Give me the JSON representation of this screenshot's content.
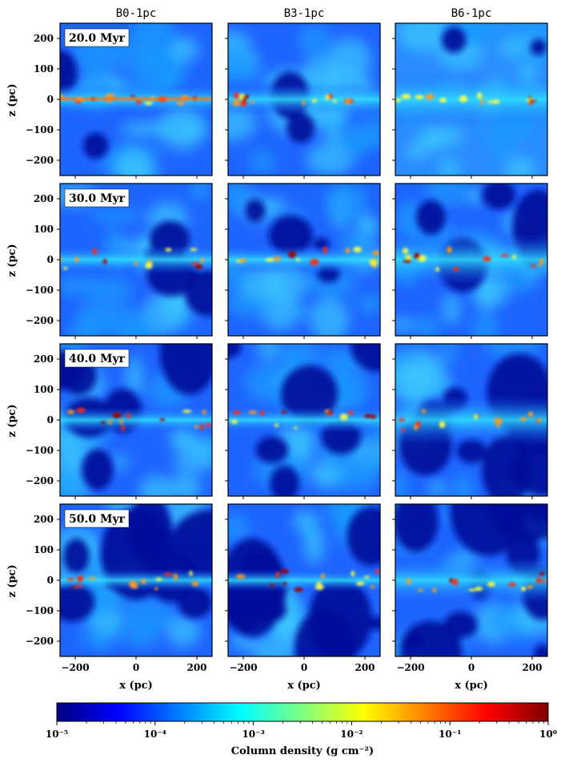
{
  "figure": {
    "columns": [
      "B0-1pc",
      "B3-1pc",
      "B6-1pc"
    ],
    "rows": [
      {
        "time_label": "20.0 Myr"
      },
      {
        "time_label": "30.0 Myr"
      },
      {
        "time_label": "40.0 Myr"
      },
      {
        "time_label": "50.0 Myr"
      }
    ],
    "x_axis": {
      "label": "x (pc)",
      "ticks": [
        "−200",
        "0",
        "200"
      ],
      "range": [
        -250,
        250
      ]
    },
    "y_axis": {
      "label": "z (pc)",
      "ticks": [
        "200",
        "100",
        "0",
        "−100",
        "−200"
      ],
      "range": [
        -250,
        250
      ]
    },
    "colorbar": {
      "label": "Column density  (g cm⁻²)",
      "scale": "log",
      "range": [
        1e-05,
        1
      ],
      "tick_labels": [
        "10⁻⁵",
        "10⁻⁴",
        "10⁻³",
        "10⁻²",
        "10⁻¹",
        "10⁰"
      ],
      "colormap": [
        "#00007f",
        "#0000ff",
        "#007fff",
        "#00ffff",
        "#7fff7f",
        "#ffff00",
        "#ff7f00",
        "#ff0000",
        "#7f0000"
      ]
    }
  }
}
